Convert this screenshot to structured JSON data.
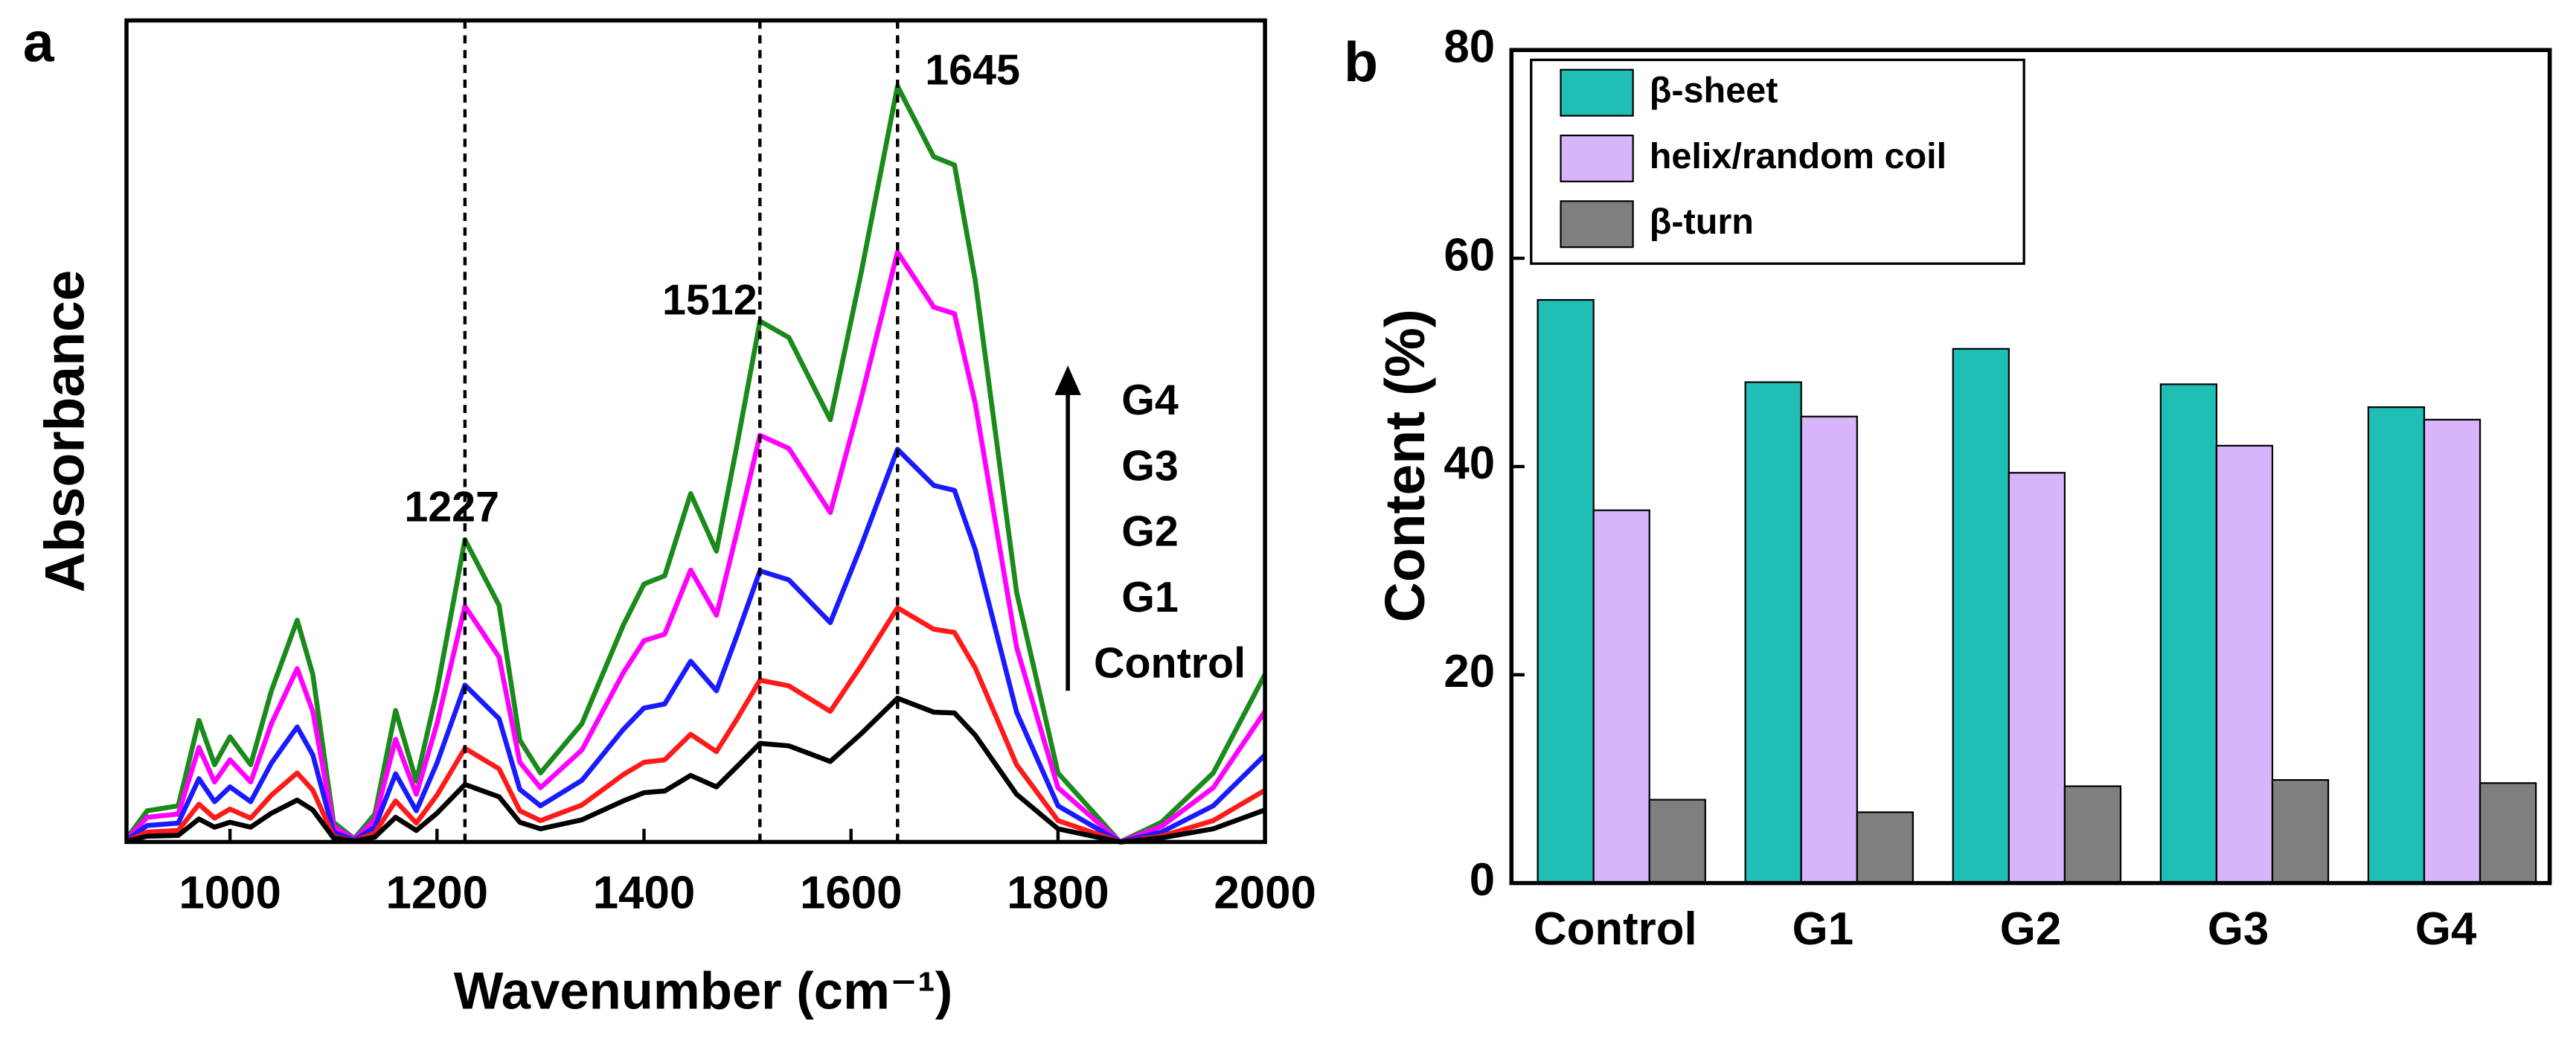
{
  "chart_data": [
    {
      "type": "line",
      "panel": "a",
      "x_label": "Wavenumber (cm⁻¹)",
      "y_label": "Absorbance",
      "x": [
        900,
        920,
        950,
        970,
        985,
        1000,
        1020,
        1040,
        1065,
        1080,
        1100,
        1120,
        1140,
        1160,
        1180,
        1200,
        1227,
        1260,
        1280,
        1300,
        1340,
        1380,
        1400,
        1420,
        1445,
        1470,
        1490,
        1512,
        1540,
        1580,
        1610,
        1645,
        1680,
        1700,
        1720,
        1760,
        1800,
        1860,
        1900,
        1950,
        2000
      ],
      "series": [
        {
          "name": "G4",
          "color": "#1a8a1a",
          "values": [
            0.004,
            0.038,
            0.044,
            0.148,
            0.094,
            0.128,
            0.094,
            0.184,
            0.27,
            0.204,
            0.024,
            0.004,
            0.034,
            0.16,
            0.074,
            0.184,
            0.368,
            0.288,
            0.124,
            0.084,
            0.144,
            0.264,
            0.314,
            0.324,
            0.424,
            0.354,
            0.484,
            0.634,
            0.614,
            0.514,
            0.694,
            0.92,
            0.834,
            0.824,
            0.684,
            0.304,
            0.084,
            0,
            0.024,
            0.084,
            0.204
          ]
        },
        {
          "name": "G3",
          "color": "#ff00ff",
          "values": [
            0.003,
            0.03,
            0.034,
            0.115,
            0.073,
            0.1,
            0.073,
            0.144,
            0.211,
            0.159,
            0.019,
            0.003,
            0.027,
            0.125,
            0.058,
            0.144,
            0.287,
            0.225,
            0.097,
            0.066,
            0.112,
            0.206,
            0.245,
            0.253,
            0.331,
            0.276,
            0.378,
            0.495,
            0.479,
            0.401,
            0.541,
            0.718,
            0.651,
            0.643,
            0.534,
            0.237,
            0.066,
            0,
            0.019,
            0.066,
            0.159
          ]
        },
        {
          "name": "G2",
          "color": "#1a1aff",
          "values": [
            0.002,
            0.02,
            0.023,
            0.077,
            0.049,
            0.067,
            0.049,
            0.096,
            0.14,
            0.106,
            0.012,
            0.002,
            0.018,
            0.083,
            0.038,
            0.096,
            0.191,
            0.15,
            0.064,
            0.044,
            0.075,
            0.137,
            0.163,
            0.168,
            0.22,
            0.184,
            0.252,
            0.33,
            0.319,
            0.267,
            0.361,
            0.478,
            0.434,
            0.428,
            0.356,
            0.158,
            0.044,
            0,
            0.012,
            0.044,
            0.106
          ]
        },
        {
          "name": "G1",
          "color": "#ff1a1a",
          "values": [
            0.001,
            0.012,
            0.014,
            0.046,
            0.029,
            0.04,
            0.029,
            0.057,
            0.084,
            0.063,
            0.007,
            0.001,
            0.011,
            0.05,
            0.023,
            0.057,
            0.114,
            0.089,
            0.038,
            0.026,
            0.045,
            0.082,
            0.097,
            0.1,
            0.131,
            0.11,
            0.15,
            0.197,
            0.19,
            0.159,
            0.215,
            0.285,
            0.259,
            0.255,
            0.212,
            0.094,
            0.026,
            0,
            0.007,
            0.026,
            0.063
          ]
        },
        {
          "name": "Control",
          "color": "#000000",
          "values": [
            0.001,
            0.007,
            0.008,
            0.028,
            0.018,
            0.024,
            0.018,
            0.035,
            0.051,
            0.039,
            0.005,
            0.001,
            0.006,
            0.03,
            0.014,
            0.035,
            0.07,
            0.055,
            0.024,
            0.016,
            0.027,
            0.05,
            0.06,
            0.062,
            0.081,
            0.067,
            0.092,
            0.12,
            0.117,
            0.098,
            0.132,
            0.175,
            0.158,
            0.157,
            0.13,
            0.058,
            0.016,
            0,
            0.005,
            0.016,
            0.039
          ]
        }
      ],
      "peak_lines": [
        1227,
        1512,
        1645
      ],
      "xlim": [
        900,
        2000
      ],
      "xticks": [
        1000,
        1200,
        1400,
        1600,
        1800,
        2000
      ],
      "ylim": [
        0,
        1
      ]
    },
    {
      "type": "bar",
      "panel": "b",
      "y_label": "Content (%)",
      "categories": [
        "Control",
        "G1",
        "G2",
        "G3",
        "G4"
      ],
      "series": [
        {
          "name": "β-sheet",
          "color": "#1fbfb6",
          "values": [
            56,
            48.1,
            51.3,
            47.9,
            45.7
          ]
        },
        {
          "name": "helix/random coil",
          "color": "#d8b4fb",
          "values": [
            35.8,
            44.8,
            39.4,
            42,
            44.5
          ]
        },
        {
          "name": "β-turn",
          "color": "#7f7f7f",
          "values": [
            8,
            6.8,
            9.3,
            9.9,
            9.6
          ]
        }
      ],
      "ylim": [
        0,
        80
      ],
      "yticks": [
        0,
        20,
        40,
        60,
        80
      ],
      "legend": "upper left"
    }
  ]
}
